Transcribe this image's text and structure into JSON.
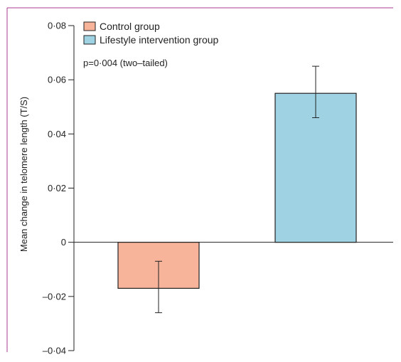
{
  "chart_data": {
    "type": "bar",
    "categories": [
      "Control group",
      "Lifestyle intervention group"
    ],
    "values": [
      -0.017,
      0.055
    ],
    "error_bars": [
      {
        "low": -0.026,
        "high": -0.007
      },
      {
        "low": 0.046,
        "high": 0.065
      }
    ],
    "colors": [
      "#f7b49a",
      "#9fd3e3"
    ],
    "ylabel": "Mean change in telomere length (T/S)",
    "ylim": [
      -0.04,
      0.08
    ],
    "yticks": [
      {
        "value": 0.08,
        "label": "0·08"
      },
      {
        "value": 0.06,
        "label": "0·06"
      },
      {
        "value": 0.04,
        "label": "0·04"
      },
      {
        "value": 0.02,
        "label": "0·02"
      },
      {
        "value": 0,
        "label": "0"
      },
      {
        "value": -0.02,
        "label": "–0·02"
      },
      {
        "value": -0.04,
        "label": "–0·04"
      }
    ],
    "legend": [
      {
        "label": "Control group",
        "color": "#f7b49a"
      },
      {
        "label": "Lifestyle intervention group",
        "color": "#9fd3e3"
      }
    ],
    "legend_position": "top-left",
    "annotation": "p=0·004 (two–tailed)",
    "grid": false,
    "frame_color": "#a83a8c"
  }
}
